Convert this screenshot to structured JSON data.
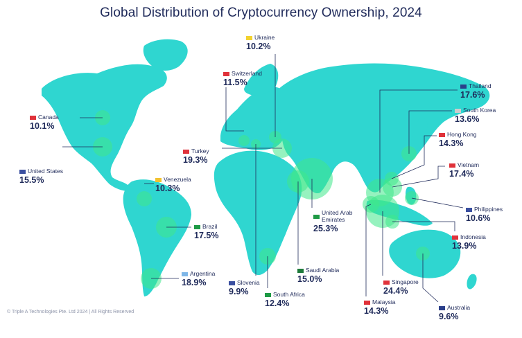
{
  "title": "Global Distribution of Cryptocurrency Ownership, 2024",
  "footer": "© Triple A Technologies Pte. Ltd 2024 | All Rights Reserved",
  "colors": {
    "land": "#2fd6d0",
    "bubble": "#3fe88a",
    "text": "#1f2a5a",
    "line": "#1f2a5a"
  },
  "countries": [
    {
      "name": "Canada",
      "value": "10.1%",
      "flag": "#e0323a"
    },
    {
      "name": "United States",
      "value": "15.5%",
      "flag": "#3a4fa0"
    },
    {
      "name": "Venezuela",
      "value": "10.3%",
      "flag": "#f2c230"
    },
    {
      "name": "Brazil",
      "value": "17.5%",
      "flag": "#1e9a45"
    },
    {
      "name": "Argentina",
      "value": "18.9%",
      "flag": "#7fb7e8"
    },
    {
      "name": "Ukraine",
      "value": "10.2%",
      "flag": "#f2d230"
    },
    {
      "name": "Switzerland",
      "value": "11.5%",
      "flag": "#e0323a"
    },
    {
      "name": "Turkey",
      "value": "19.3%",
      "flag": "#e0323a"
    },
    {
      "name": "Slovenia",
      "value": "9.9%",
      "flag": "#3a4fa0"
    },
    {
      "name": "South Africa",
      "value": "12.4%",
      "flag": "#1e9a45"
    },
    {
      "name": "Saudi Arabia",
      "value": "15.0%",
      "flag": "#1e7a3a"
    },
    {
      "name": "United Arab\nEmirates",
      "value": "25.3%",
      "flag": "#1e9a45"
    },
    {
      "name": "Thailand",
      "value": "17.6%",
      "flag": "#2b3f8a"
    },
    {
      "name": "South Korea",
      "value": "13.6%",
      "flag": "#cccccc"
    },
    {
      "name": "Hong Kong",
      "value": "14.3%",
      "flag": "#e0323a"
    },
    {
      "name": "Vietnam",
      "value": "17.4%",
      "flag": "#e0323a"
    },
    {
      "name": "Philippines",
      "value": "10.6%",
      "flag": "#3a4fa0"
    },
    {
      "name": "Indonesia",
      "value": "13.9%",
      "flag": "#e0323a"
    },
    {
      "name": "Singapore",
      "value": "24.4%",
      "flag": "#e0323a"
    },
    {
      "name": "Malaysia",
      "value": "14.3%",
      "flag": "#e0323a"
    },
    {
      "name": "Australia",
      "value": "9.6%",
      "flag": "#2b3f8a"
    }
  ]
}
